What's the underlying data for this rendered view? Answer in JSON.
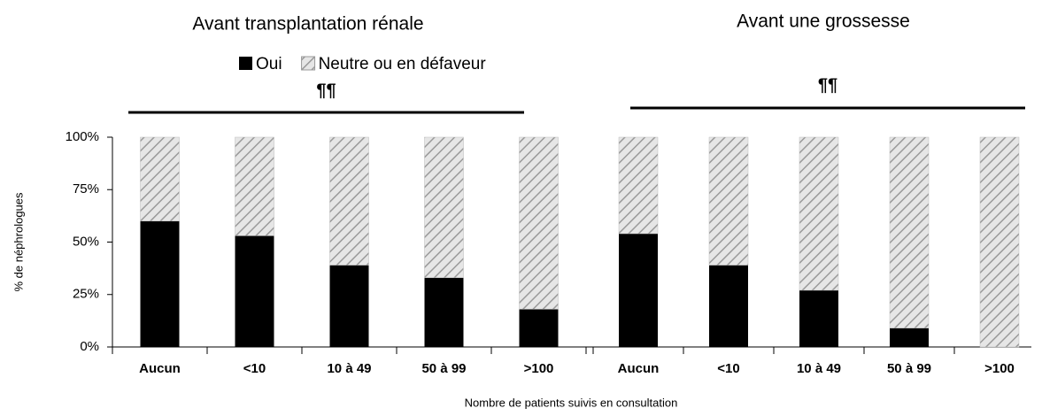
{
  "chart_data": [
    {
      "type": "bar",
      "title": "Avant transplantation rénale",
      "annotation": "¶¶",
      "xlabel": "Nombre de patients suivis en consultation",
      "ylabel": "% de néphrologues",
      "categories": [
        "Aucun",
        "<10",
        "10 à 49",
        "50 à 99",
        ">100"
      ],
      "series": [
        {
          "name": "Oui",
          "color": "#000000",
          "values": [
            60,
            53,
            39,
            33,
            18
          ]
        },
        {
          "name": "Neutre ou en défaveur",
          "color": "hatch",
          "values": [
            40,
            47,
            61,
            67,
            82
          ]
        }
      ],
      "ylim": [
        0,
        100
      ],
      "yticks": [
        {
          "value": 0,
          "label": "0%"
        },
        {
          "value": 25,
          "label": "25%"
        },
        {
          "value": 50,
          "label": "50%"
        },
        {
          "value": 75,
          "label": "75%"
        },
        {
          "value": 100,
          "label": "100%"
        }
      ]
    },
    {
      "type": "bar",
      "title": "Avant une grossesse",
      "annotation": "¶¶",
      "categories": [
        "Aucun",
        "<10",
        "10 à 49",
        "50 à 99",
        ">100"
      ],
      "series": [
        {
          "color": "#000000",
          "values": [
            54,
            39,
            27,
            9,
            0
          ]
        },
        {
          "color": "hatch",
          "values": [
            46,
            61,
            73,
            91,
            100
          ]
        }
      ],
      "ylim": [
        0,
        100
      ]
    }
  ]
}
